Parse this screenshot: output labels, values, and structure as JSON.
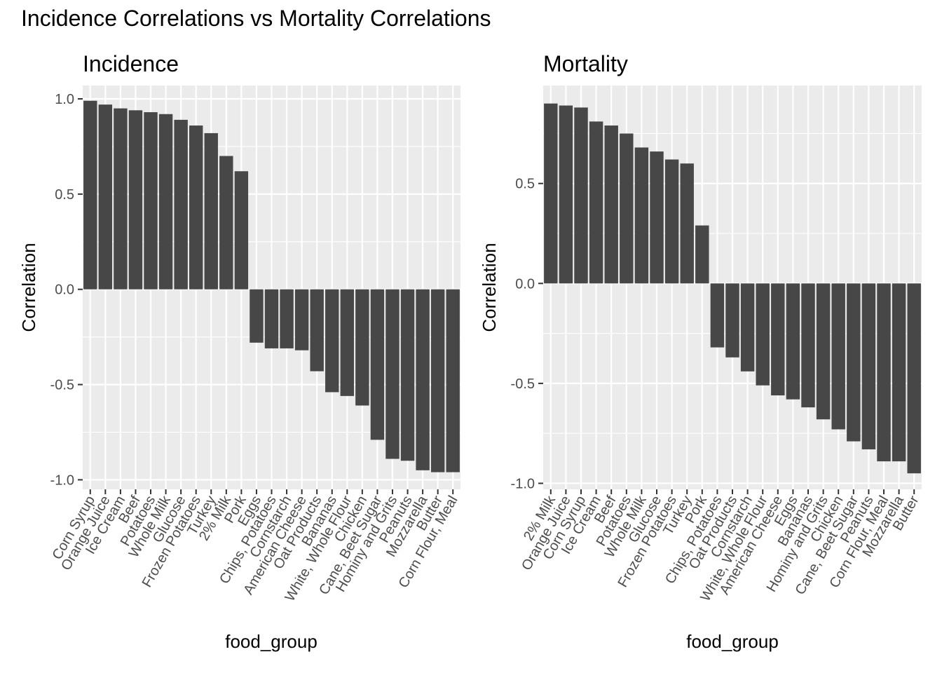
{
  "title": "Incidence Correlations vs Mortality Correlations",
  "colors": {
    "bar": "#474747",
    "panel": "#ebebeb",
    "grid": "#ffffff",
    "axis_text": "#4d4d4d",
    "text": "#000000"
  },
  "chart_data": [
    {
      "type": "bar",
      "title": "Incidence",
      "xlabel": "food_group",
      "ylabel": "Correlation",
      "ylim": [
        -1.05,
        1.07
      ],
      "yticks": [
        1.0,
        0.5,
        0.0,
        -0.5,
        -1.0
      ],
      "ytick_labels": [
        "1.0",
        "0.5",
        "0.0",
        "-0.5",
        "-1.0"
      ],
      "grid": true,
      "categories": [
        "Corn Syrup",
        "Orange Juice",
        "Ice Cream",
        "Beef",
        "Potatoes",
        "Whole Milk",
        "Glucose",
        "Frozen Potatoes",
        "Turkey",
        "2% Milk",
        "Pork",
        "Eggs",
        "Chips, Potatoes",
        "Cornstarch",
        "American Cheese",
        "Oat Products",
        "Bananas",
        "White, Whole Flour",
        "Chicken",
        "Cane, Beet Sugar",
        "Hominy and Grits",
        "Peanuts",
        "Mozzarella",
        "Butter",
        "Corn Flour, Meal"
      ],
      "values": [
        0.99,
        0.97,
        0.95,
        0.94,
        0.93,
        0.92,
        0.89,
        0.86,
        0.82,
        0.7,
        0.62,
        -0.28,
        -0.31,
        -0.31,
        -0.32,
        -0.43,
        -0.54,
        -0.56,
        -0.61,
        -0.79,
        -0.89,
        -0.9,
        -0.95,
        -0.96,
        -0.96
      ]
    },
    {
      "type": "bar",
      "title": "Mortality",
      "xlabel": "food_group",
      "ylabel": "Correlation",
      "ylim": [
        -1.03,
        0.99
      ],
      "yticks": [
        0.5,
        0.0,
        -0.5,
        -1.0
      ],
      "ytick_labels": [
        "0.5",
        "0.0",
        "-0.5",
        "-1.0"
      ],
      "grid": true,
      "categories": [
        "2% Milk",
        "Orange Juice",
        "Corn Syrup",
        "Ice Cream",
        "Beef",
        "Potatoes",
        "Whole Milk",
        "Glucose",
        "Frozen Potatoes",
        "Turkey",
        "Pork",
        "Chips, Potatoes",
        "Oat Products",
        "Cornstarch",
        "White, Whole Flour",
        "American Cheese",
        "Eggs",
        "Bananas",
        "Hominy and Grits",
        "Chicken",
        "Cane, Beet Sugar",
        "Peanuts",
        "Corn Flour, Meal",
        "Mozzarella",
        "Butter"
      ],
      "values": [
        0.9,
        0.89,
        0.88,
        0.81,
        0.79,
        0.75,
        0.68,
        0.66,
        0.62,
        0.6,
        0.29,
        -0.32,
        -0.37,
        -0.44,
        -0.51,
        -0.56,
        -0.58,
        -0.62,
        -0.68,
        -0.73,
        -0.79,
        -0.83,
        -0.89,
        -0.89,
        -0.95
      ]
    }
  ]
}
